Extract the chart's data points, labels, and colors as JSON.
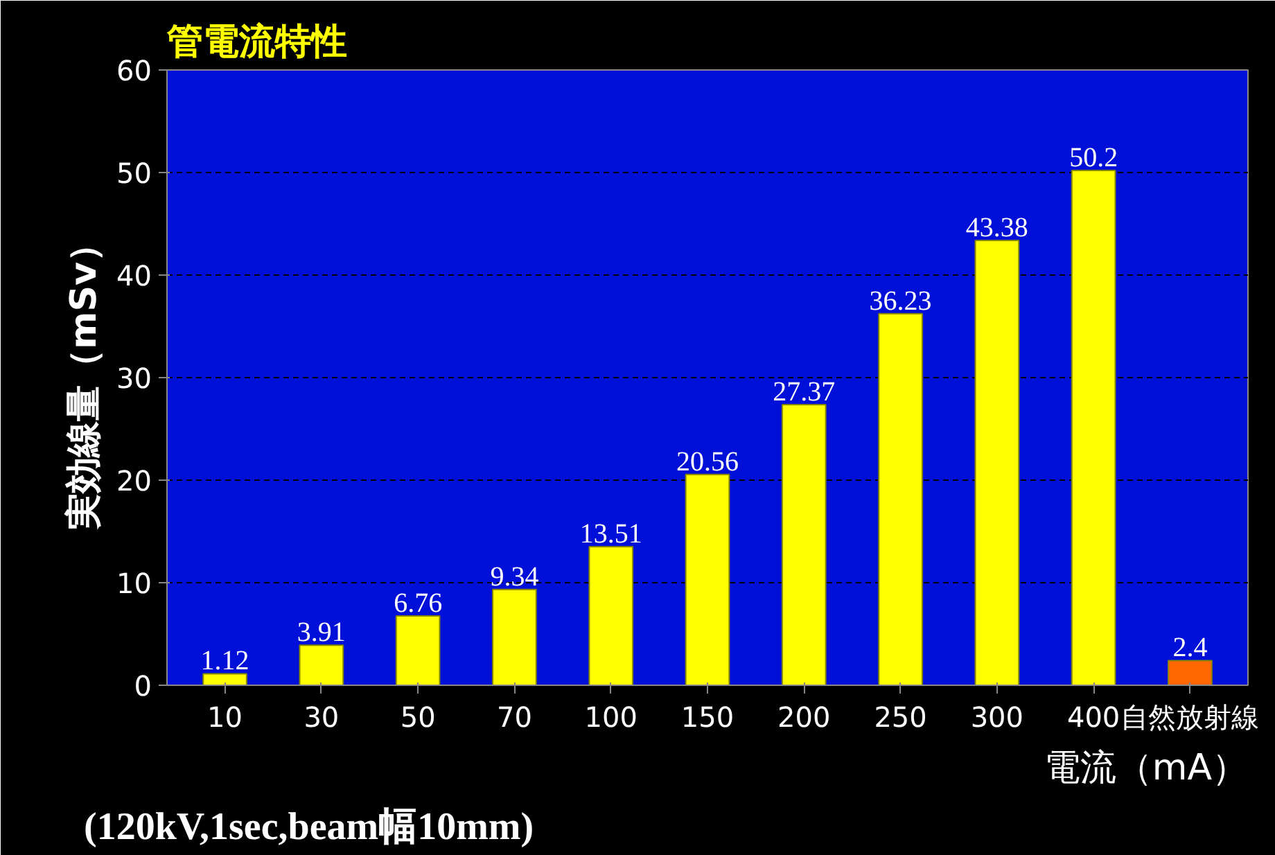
{
  "chart_data": {
    "type": "bar",
    "title": "管電流特性",
    "ylabel": "実効線量（mSv）",
    "xlabel": "電流（mA）",
    "categories": [
      "10",
      "30",
      "50",
      "70",
      "100",
      "150",
      "200",
      "250",
      "300",
      "400",
      "自然放射線"
    ],
    "values": [
      1.12,
      3.91,
      6.76,
      9.34,
      13.51,
      20.56,
      27.37,
      36.23,
      43.38,
      50.2,
      2.4
    ],
    "colors": [
      "#ffff00",
      "#ffff00",
      "#ffff00",
      "#ffff00",
      "#ffff00",
      "#ffff00",
      "#ffff00",
      "#ffff00",
      "#ffff00",
      "#ffff00",
      "#ff6600"
    ],
    "ylim": [
      0,
      60
    ],
    "yticks": [
      0,
      10,
      20,
      30,
      40,
      50,
      60
    ],
    "grid": "y",
    "data_labels": true,
    "annotations": [
      "(120kV,1sec,beam幅10mm)"
    ]
  }
}
